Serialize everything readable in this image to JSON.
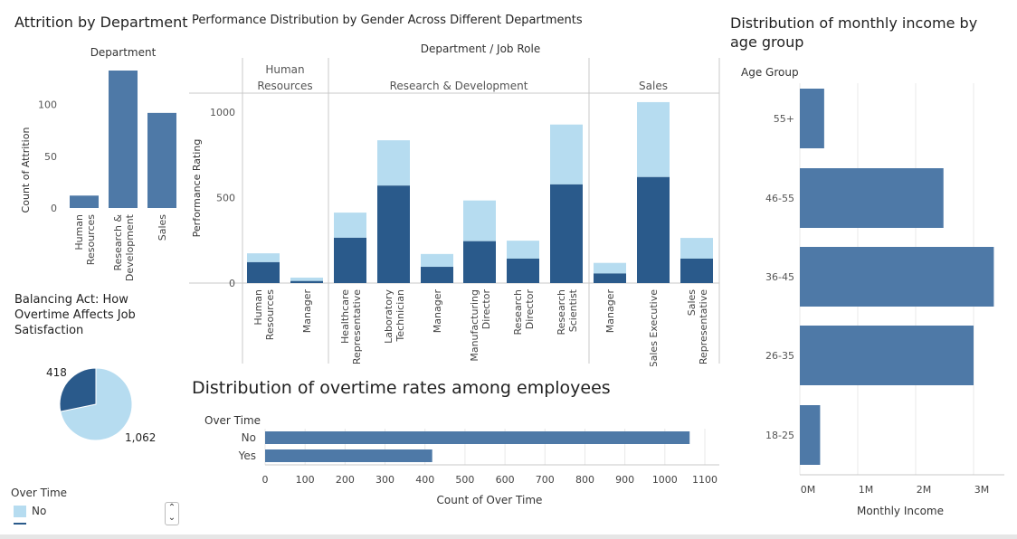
{
  "attrition": {
    "title": "Attrition by Department",
    "header": "Department",
    "ylabel": "Count of Attrition",
    "yticks": [
      "0",
      "50",
      "100"
    ],
    "categories": [
      [
        "Human",
        "Resources"
      ],
      [
        "Research &",
        "Development"
      ],
      [
        "Sales"
      ]
    ]
  },
  "performance": {
    "title": "Performance Distribution by Gender Across Different Departments",
    "header": "Department  /  Job Role",
    "ylabel": "Performance Rating",
    "yticks": [
      "0",
      "500",
      "1000"
    ],
    "departments": [
      [
        "Human",
        "Resources"
      ],
      [
        "Research & Development"
      ],
      [
        "Sales"
      ]
    ],
    "roles": [
      [
        "Human",
        "Resources"
      ],
      [
        "Manager"
      ],
      [
        "Healthcare",
        "Representative"
      ],
      [
        "Laboratory",
        "Technician"
      ],
      [
        "Manager"
      ],
      [
        "Manufacturing",
        "Director"
      ],
      [
        "Research",
        "Director"
      ],
      [
        "Research",
        "Scientist"
      ],
      [
        "Manager"
      ],
      [
        "Sales Executive"
      ],
      [
        "Sales",
        "Representative"
      ]
    ]
  },
  "overtime_pie": {
    "title": "Balancing Act: How Overtime Affects Job Satisfaction",
    "labels": [
      "418",
      "1,062"
    ]
  },
  "overtime_bar": {
    "title": "Distribution of overtime rates among employees",
    "header": "Over Time",
    "categories": [
      "No",
      "Yes"
    ],
    "xticks": [
      "0",
      "100",
      "200",
      "300",
      "400",
      "500",
      "600",
      "700",
      "800",
      "900",
      "1000",
      "1100"
    ],
    "xlabel": "Count of Over Time"
  },
  "income": {
    "title": "Distribution of monthly income by age group",
    "header": "Age Group",
    "categories": [
      "55+",
      "46-55",
      "36-45",
      "26-35",
      "18-25"
    ],
    "xticks": [
      "0M",
      "1M",
      "2M",
      "3M"
    ],
    "xlabel": "Monthly Income"
  },
  "legend": {
    "title": "Over Time",
    "item": "No"
  },
  "colors": {
    "light": "#b6dcf0",
    "dark": "#2a5a8b",
    "mid": "#4e79a7",
    "grid": "#e8e8e8",
    "divider": "#c8c8c8"
  },
  "chart_data": [
    {
      "type": "bar",
      "title": "Attrition by Department",
      "xlabel": "Department",
      "ylabel": "Count of Attrition",
      "categories": [
        "Human Resources",
        "Research & Development",
        "Sales"
      ],
      "values": [
        12,
        133,
        92
      ],
      "ylim": [
        0,
        140
      ]
    },
    {
      "type": "bar",
      "title": "Performance Distribution by Gender Across Different Departments",
      "xlabel": "Department / Job Role",
      "ylabel": "Performance Rating",
      "stacked": true,
      "categories": [
        "Human Resources|Human Resources",
        "Human Resources|Manager",
        "Research & Development|Healthcare Representative",
        "Research & Development|Laboratory Technician",
        "Research & Development|Manager",
        "Research & Development|Manufacturing Director",
        "Research & Development|Research Director",
        "Research & Development|Research Scientist",
        "Sales|Manager",
        "Sales|Sales Executive",
        "Sales|Sales Representative"
      ],
      "series": [
        {
          "values": [
            122,
            12,
            265,
            570,
            95,
            245,
            143,
            577,
            56,
            620,
            143
          ]
        },
        {
          "values": [
            52,
            20,
            147,
            265,
            75,
            238,
            105,
            350,
            62,
            438,
            121
          ]
        }
      ],
      "ylim": [
        0,
        1100
      ]
    },
    {
      "type": "pie",
      "title": "Balancing Act: How Overtime Affects Job Satisfaction",
      "labels": [
        "Yes",
        "No"
      ],
      "values": [
        418,
        1062
      ]
    },
    {
      "type": "bar",
      "orientation": "horizontal",
      "title": "Distribution of overtime rates among employees",
      "xlabel": "Count of Over Time",
      "ylabel": "Over Time",
      "categories": [
        "No",
        "Yes"
      ],
      "values": [
        1062,
        418
      ],
      "xlim": [
        0,
        1130
      ]
    },
    {
      "type": "bar",
      "orientation": "horizontal",
      "title": "Distribution of monthly income by age group",
      "xlabel": "Monthly Income",
      "ylabel": "Age Group",
      "categories": [
        "55+",
        "46-55",
        "36-45",
        "26-35",
        "18-25"
      ],
      "values": [
        420000,
        2480000,
        3350000,
        3000000,
        350000
      ],
      "xlim": [
        0,
        3500000
      ]
    }
  ]
}
